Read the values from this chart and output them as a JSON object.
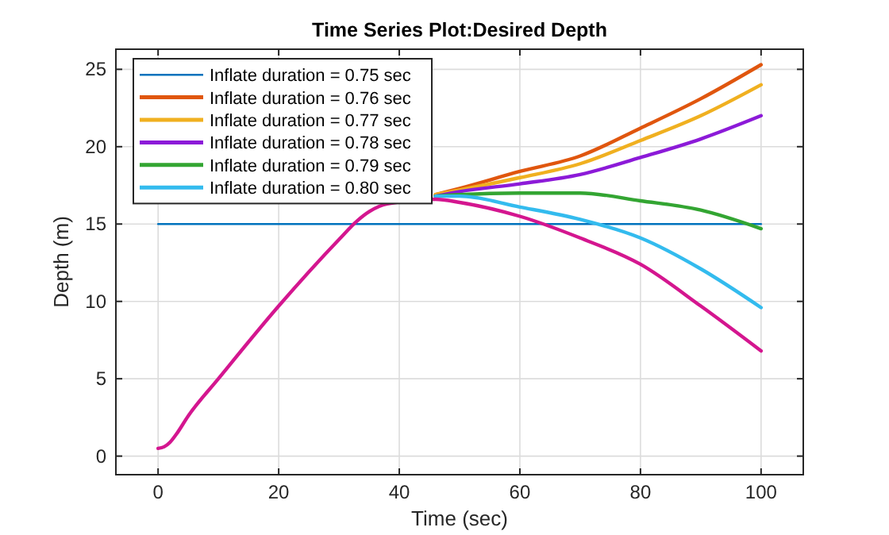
{
  "chart_data": {
    "type": "line",
    "title": "Time Series Plot:Desired Depth",
    "xlabel": "Time (sec)",
    "ylabel": "Depth (m)",
    "xlim": [
      -7,
      107
    ],
    "ylim": [
      -1.2,
      26.3
    ],
    "xticks": [
      0,
      20,
      40,
      60,
      80,
      100
    ],
    "yticks": [
      0,
      5,
      10,
      15,
      20,
      25
    ],
    "grid": true,
    "legend": "top left",
    "line_style": "solid",
    "marker": "none",
    "series": [
      {
        "name": "Inflate duration = 0.75 sec",
        "color": "#0072bd",
        "x": [
          0,
          100
        ],
        "values": [
          15,
          15
        ]
      },
      {
        "name": "Inflate duration = 0.76 sec",
        "color": "#e0560e",
        "x": [
          46,
          50,
          60,
          70,
          80,
          90,
          100
        ],
        "values": [
          16.9,
          17.3,
          18.4,
          19.4,
          21.2,
          23.1,
          25.3
        ]
      },
      {
        "name": "Inflate duration = 0.77 sec",
        "color": "#f0b020",
        "x": [
          46,
          50,
          60,
          70,
          80,
          90,
          100
        ],
        "values": [
          16.9,
          17.2,
          18.0,
          18.9,
          20.4,
          22.0,
          24.0
        ]
      },
      {
        "name": "Inflate duration = 0.78 sec",
        "color": "#8c1ad8",
        "x": [
          46,
          50,
          60,
          70,
          80,
          90,
          100
        ],
        "values": [
          16.8,
          17.1,
          17.6,
          18.2,
          19.3,
          20.5,
          22.0
        ]
      },
      {
        "name": "Inflate duration = 0.79 sec",
        "color": "#33a532",
        "x": [
          46,
          50,
          60,
          70,
          80,
          90,
          100
        ],
        "values": [
          16.8,
          16.9,
          17.0,
          17.0,
          16.5,
          15.9,
          14.7
        ]
      },
      {
        "name": "Inflate duration = 0.80 sec",
        "color": "#33bbee",
        "x": [
          46,
          50,
          60,
          70,
          80,
          90,
          100
        ],
        "values": [
          16.8,
          16.8,
          16.1,
          15.3,
          14.1,
          12.1,
          9.6
        ]
      },
      {
        "color": "#d4168f",
        "x": [
          0,
          1,
          2,
          3,
          5,
          10,
          20,
          30,
          33,
          35,
          38,
          46,
          50,
          60,
          70,
          80,
          90,
          100
        ],
        "values": [
          0.5,
          0.6,
          0.9,
          1.4,
          2.6,
          5.0,
          9.7,
          14.0,
          15.2,
          15.8,
          16.3,
          16.6,
          16.4,
          15.5,
          14.1,
          12.4,
          9.7,
          6.8
        ]
      }
    ]
  }
}
